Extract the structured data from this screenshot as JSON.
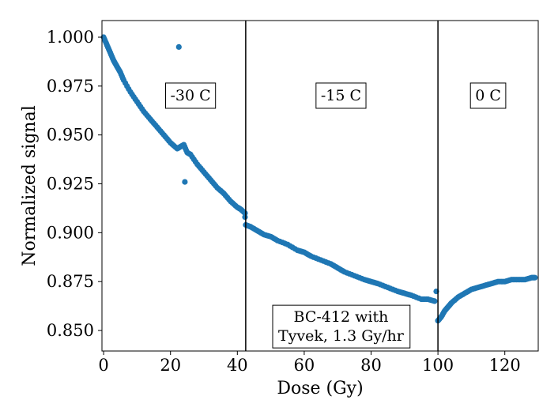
{
  "chart_data": {
    "type": "scatter",
    "xlabel": "Dose (Gy)",
    "ylabel": "Normalized signal",
    "xlim": [
      -0.5,
      130
    ],
    "ylim": [
      0.8395,
      1.0085
    ],
    "xticks": [
      0,
      20,
      40,
      60,
      80,
      100,
      120
    ],
    "xtick_labels": [
      "0",
      "20",
      "40",
      "60",
      "80",
      "100",
      "120"
    ],
    "yticks": [
      0.85,
      0.875,
      0.9,
      0.925,
      0.95,
      0.975,
      1.0
    ],
    "ytick_labels": [
      "0.850",
      "0.875",
      "0.900",
      "0.925",
      "0.950",
      "0.975",
      "1.000"
    ],
    "grid": false,
    "marker_color": "#1f77b4",
    "vlines": [
      42.5,
      100
    ],
    "region_labels": [
      {
        "text": "-30 C",
        "x": 26,
        "y": 0.9705
      },
      {
        "text": "-15 C",
        "x": 71,
        "y": 0.9705
      },
      {
        "text": "0 C",
        "x": 115,
        "y": 0.9705
      }
    ],
    "annotation": {
      "lines": [
        "BC-412 with",
        "Tyvek, 1.3 Gy/hr"
      ],
      "x_center": 71,
      "y_top": 0.8625
    },
    "series": [
      {
        "name": "-30 C",
        "x": [
          0,
          1,
          2,
          3,
          4,
          5,
          6,
          8,
          10,
          12,
          14,
          16,
          18,
          20,
          22,
          23,
          24,
          25,
          26,
          28,
          30,
          32,
          34,
          36,
          38,
          40,
          41,
          42.3
        ],
        "y": [
          1.0,
          0.996,
          0.992,
          0.988,
          0.985,
          0.982,
          0.978,
          0.972,
          0.967,
          0.962,
          0.958,
          0.954,
          0.95,
          0.946,
          0.943,
          0.944,
          0.945,
          0.941,
          0.94,
          0.935,
          0.931,
          0.927,
          0.923,
          0.92,
          0.916,
          0.913,
          0.912,
          0.91
        ]
      },
      {
        "name": "-15 C",
        "x": [
          42.5,
          44,
          46,
          48,
          50,
          52,
          55,
          58,
          60,
          62,
          65,
          68,
          70,
          72,
          75,
          78,
          80,
          82,
          85,
          88,
          90,
          92,
          95,
          97,
          99
        ],
        "y": [
          0.904,
          0.903,
          0.901,
          0.899,
          0.898,
          0.896,
          0.894,
          0.891,
          0.89,
          0.888,
          0.886,
          0.884,
          0.882,
          0.88,
          0.878,
          0.876,
          0.875,
          0.874,
          0.872,
          0.87,
          0.869,
          0.868,
          0.866,
          0.866,
          0.865
        ]
      },
      {
        "name": "0 C",
        "x": [
          100,
          101,
          102,
          103,
          104,
          106,
          108,
          110,
          112,
          114,
          116,
          118,
          120,
          122,
          124,
          126,
          128,
          129
        ],
        "y": [
          0.855,
          0.857,
          0.86,
          0.862,
          0.864,
          0.867,
          0.869,
          0.871,
          0.872,
          0.873,
          0.874,
          0.875,
          0.875,
          0.876,
          0.876,
          0.876,
          0.877,
          0.877
        ]
      },
      {
        "name": "outliers",
        "x": [
          22.5,
          24.3,
          42.3,
          99.5
        ],
        "y": [
          0.995,
          0.926,
          0.908,
          0.87
        ]
      }
    ]
  }
}
